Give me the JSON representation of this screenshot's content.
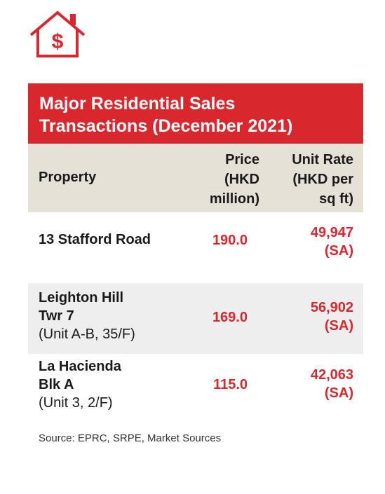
{
  "title_lines": [
    "Major Residential Sales",
    "Transactions (December 2021)"
  ],
  "headers": {
    "property": "Property",
    "price": [
      "Price",
      "(HKD",
      "million)"
    ],
    "unit_rate": [
      "Unit Rate",
      "(HKD per",
      "sq ft)"
    ]
  },
  "rows": [
    {
      "name_lines": [
        "13 Stafford Road"
      ],
      "detail": "",
      "price": "190.0",
      "rate": "49,947",
      "rate_note": "(SA)"
    },
    {
      "name_lines": [
        "Leighton Hill",
        "Twr 7"
      ],
      "detail": "(Unit A-B, 35/F)",
      "price": "169.0",
      "rate": "56,902",
      "rate_note": "(SA)"
    },
    {
      "name_lines": [
        "La Hacienda",
        "Blk A"
      ],
      "detail": "(Unit 3, 2/F)",
      "price": "115.0",
      "rate": "42,063",
      "rate_note": "(SA)"
    }
  ],
  "source": "Source: EPRC, SRPE, Market Sources",
  "colors": {
    "accent": "#d9272e",
    "header_bg": "#e6e1d7",
    "row_alt_bg": "#eeeeee"
  },
  "icons": {
    "logo": "house-dollar-icon"
  }
}
